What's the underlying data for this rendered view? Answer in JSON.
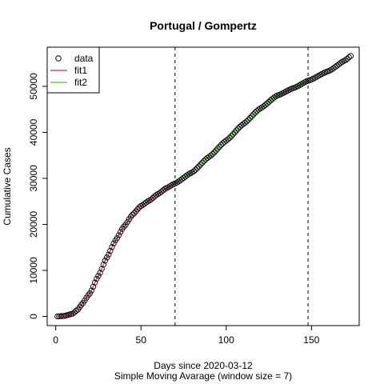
{
  "chart_data": {
    "type": "scatter",
    "title": "Portugal / Gompertz",
    "xlabel": "Days since 2020-03-12",
    "xlabel2": "Simple Moving Avarage (window size = 7)",
    "ylabel": "Cumulative Cases",
    "xlim": [
      -5,
      178
    ],
    "ylim": [
      -2000,
      58500
    ],
    "xticks": [
      0,
      50,
      100,
      150
    ],
    "yticks": [
      0,
      10000,
      20000,
      30000,
      40000,
      50000
    ],
    "vlines": [
      70,
      148
    ],
    "legend": {
      "position": "top-left",
      "entries": [
        {
          "label": "data",
          "kind": "point",
          "color": "#000000"
        },
        {
          "label": "fit1",
          "kind": "line",
          "color": "#DF536B"
        },
        {
          "label": "fit2",
          "kind": "line",
          "color": "#61D04F"
        }
      ]
    },
    "grid": false,
    "series": [
      {
        "name": "data",
        "kind": "points",
        "color": "#000000",
        "x_start": 1,
        "x_end": 173,
        "anchors": [
          [
            1,
            0
          ],
          [
            5,
            100
          ],
          [
            10,
            600
          ],
          [
            13,
            1500
          ],
          [
            15,
            2500
          ],
          [
            20,
            5000
          ],
          [
            25,
            8800
          ],
          [
            30,
            12800
          ],
          [
            35,
            16500
          ],
          [
            40,
            19500
          ],
          [
            45,
            22100
          ],
          [
            50,
            24000
          ],
          [
            55,
            25200
          ],
          [
            60,
            26600
          ],
          [
            65,
            27900
          ],
          [
            70,
            28900
          ],
          [
            80,
            31300
          ],
          [
            90,
            34700
          ],
          [
            100,
            38200
          ],
          [
            110,
            41800
          ],
          [
            120,
            45200
          ],
          [
            130,
            48000
          ],
          [
            140,
            49700
          ],
          [
            148,
            51200
          ],
          [
            160,
            53300
          ],
          [
            170,
            55700
          ],
          [
            173,
            56600
          ]
        ]
      },
      {
        "name": "fit1",
        "kind": "line",
        "color": "#DF536B",
        "x_start": 1,
        "x_end": 70
      },
      {
        "name": "fit2",
        "kind": "line",
        "color": "#61D04F",
        "x_start": 70,
        "x_end": 148
      }
    ]
  }
}
